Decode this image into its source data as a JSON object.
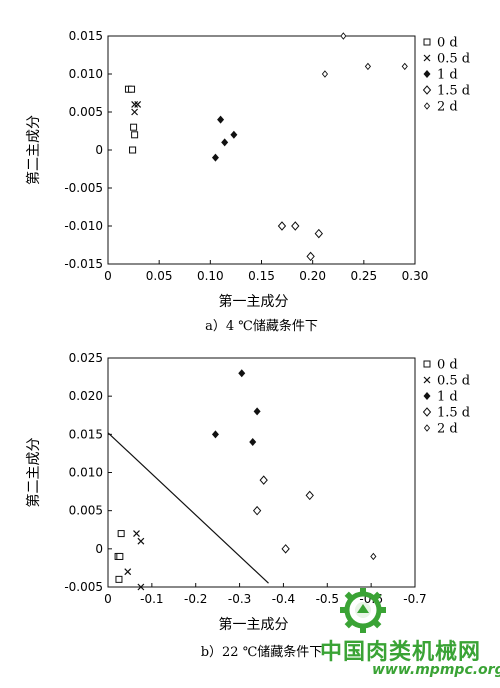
{
  "chart_data": [
    {
      "type": "scatter",
      "caption": "a）4 ℃储藏条件下",
      "xlabel": "第一主成分",
      "ylabel": "第二主成分",
      "xlim": [
        0,
        0.3
      ],
      "ylim": [
        -0.015,
        0.015
      ],
      "xticks": [
        "0",
        "0.05",
        "0.10",
        "0.15",
        "0.20",
        "0.25",
        "0.30"
      ],
      "yticks": [
        "0.015",
        "0.010",
        "0.005",
        "0",
        "-0.005",
        "-0.010",
        "-0.015"
      ],
      "legend_position": "outside-right",
      "series": [
        {
          "name": "0 d",
          "marker": "square-open",
          "points": [
            [
              0.02,
              0.008
            ],
            [
              0.023,
              0.008
            ],
            [
              0.025,
              0.003
            ],
            [
              0.026,
              0.002
            ],
            [
              0.024,
              0.0
            ],
            [
              0.024,
              0.0
            ]
          ]
        },
        {
          "name": "0.5 d",
          "marker": "x",
          "points": [
            [
              0.026,
              0.006
            ],
            [
              0.029,
              0.006
            ],
            [
              0.026,
              0.005
            ]
          ]
        },
        {
          "name": "1 d",
          "marker": "diamond-filled",
          "points": [
            [
              0.11,
              0.004
            ],
            [
              0.123,
              0.002
            ],
            [
              0.114,
              0.001
            ],
            [
              0.105,
              -0.001
            ]
          ]
        },
        {
          "name": "1.5 d",
          "marker": "diamond-open",
          "points": [
            [
              0.17,
              -0.01
            ],
            [
              0.183,
              -0.01
            ],
            [
              0.206,
              -0.011
            ],
            [
              0.198,
              -0.014
            ]
          ]
        },
        {
          "name": "2 d",
          "marker": "diamond-small",
          "points": [
            [
              0.23,
              0.015
            ],
            [
              0.212,
              0.01
            ],
            [
              0.254,
              0.011
            ],
            [
              0.29,
              0.011
            ]
          ]
        }
      ]
    },
    {
      "type": "scatter",
      "caption": "b）22 ℃储藏条件下",
      "xlabel": "第一主成分",
      "ylabel": "第二主成分",
      "xlim": [
        0,
        -0.7
      ],
      "ylim": [
        -0.005,
        0.025
      ],
      "xticks": [
        "0",
        "-0.1",
        "-0.2",
        "-0.3",
        "-0.4",
        "-0.5",
        "-0.6",
        "-0.7"
      ],
      "yticks": [
        "0.025",
        "0.020",
        "0.015",
        "0.010",
        "0.005",
        "0",
        "-0.005"
      ],
      "legend_position": "outside-right",
      "divider_line": [
        [
          0,
          0.0152
        ],
        [
          -0.366,
          -0.0045
        ]
      ],
      "series": [
        {
          "name": "0 d",
          "marker": "square-open",
          "points": [
            [
              -0.03,
              0.002
            ],
            [
              -0.023,
              -0.001
            ],
            [
              -0.027,
              -0.001
            ],
            [
              -0.025,
              -0.004
            ]
          ]
        },
        {
          "name": "0.5 d",
          "marker": "x",
          "points": [
            [
              -0.065,
              0.002
            ],
            [
              -0.075,
              0.001
            ],
            [
              -0.045,
              -0.003
            ],
            [
              -0.075,
              -0.005
            ]
          ]
        },
        {
          "name": "1 d",
          "marker": "diamond-filled",
          "points": [
            [
              -0.305,
              0.023
            ],
            [
              -0.34,
              0.018
            ],
            [
              -0.245,
              0.015
            ],
            [
              -0.33,
              0.014
            ]
          ]
        },
        {
          "name": "1.5 d",
          "marker": "diamond-open",
          "points": [
            [
              -0.355,
              0.009
            ],
            [
              -0.46,
              0.007
            ],
            [
              -0.34,
              0.005
            ],
            [
              -0.405,
              0.0
            ]
          ]
        },
        {
          "name": "2 d",
          "marker": "diamond-small",
          "points": [
            [
              -0.605,
              -0.001
            ]
          ]
        }
      ]
    }
  ],
  "watermark": {
    "text": "中国肉类机械网",
    "url": "www.mpmpc.org",
    "logo": "gear-logo-icon"
  }
}
